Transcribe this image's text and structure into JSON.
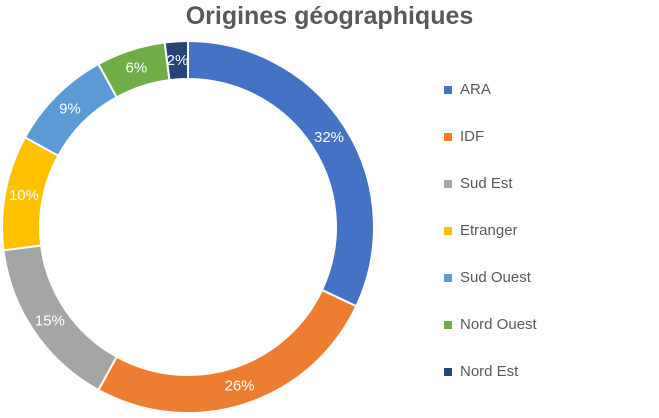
{
  "chart_data": {
    "type": "pie",
    "title": "Origines géographiques",
    "donut": true,
    "legend_position": "right",
    "categories": [
      "ARA",
      "IDF",
      "Sud Est",
      "Etranger",
      "Sud Ouest",
      "Nord Ouest",
      "Nord Est"
    ],
    "values": [
      32,
      26,
      15,
      10,
      9,
      6,
      2
    ],
    "value_labels": [
      "32%",
      "26%",
      "15%",
      "10%",
      "9%",
      "6%",
      "2%"
    ],
    "colors": [
      "#4472C4",
      "#ED7D31",
      "#A5A5A5",
      "#FFC000",
      "#5B9BD5",
      "#70AD47",
      "#264478"
    ]
  }
}
